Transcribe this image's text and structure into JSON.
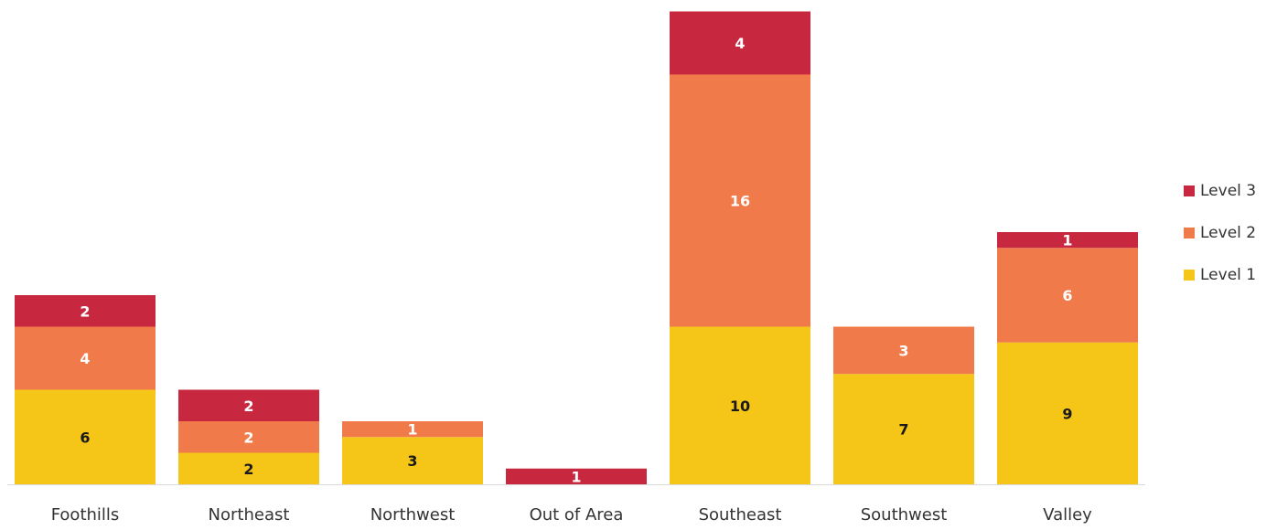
{
  "chart_data": {
    "type": "bar",
    "stacked": true,
    "categories": [
      "Foothills",
      "Northeast",
      "Northwest",
      "Out of Area",
      "Southeast",
      "Southwest",
      "Valley"
    ],
    "series": [
      {
        "name": "Level 1",
        "color": "#F5C518",
        "values": [
          6,
          2,
          3,
          0,
          10,
          7,
          9
        ]
      },
      {
        "name": "Level 2",
        "color": "#F07A4A",
        "values": [
          4,
          2,
          1,
          0,
          16,
          3,
          6
        ]
      },
      {
        "name": "Level 3",
        "color": "#C8283F",
        "values": [
          2,
          2,
          0,
          1,
          4,
          0,
          1
        ]
      }
    ],
    "data_labels": [
      [
        "6",
        "2",
        "3",
        "",
        "10",
        "7",
        "9"
      ],
      [
        "4",
        "2",
        "1",
        "",
        "16",
        "3",
        "6"
      ],
      [
        "2",
        "2",
        "",
        "1",
        "4",
        "",
        "1"
      ]
    ],
    "ylim": [
      0,
      30
    ],
    "grid": false,
    "legend_position": "right"
  }
}
